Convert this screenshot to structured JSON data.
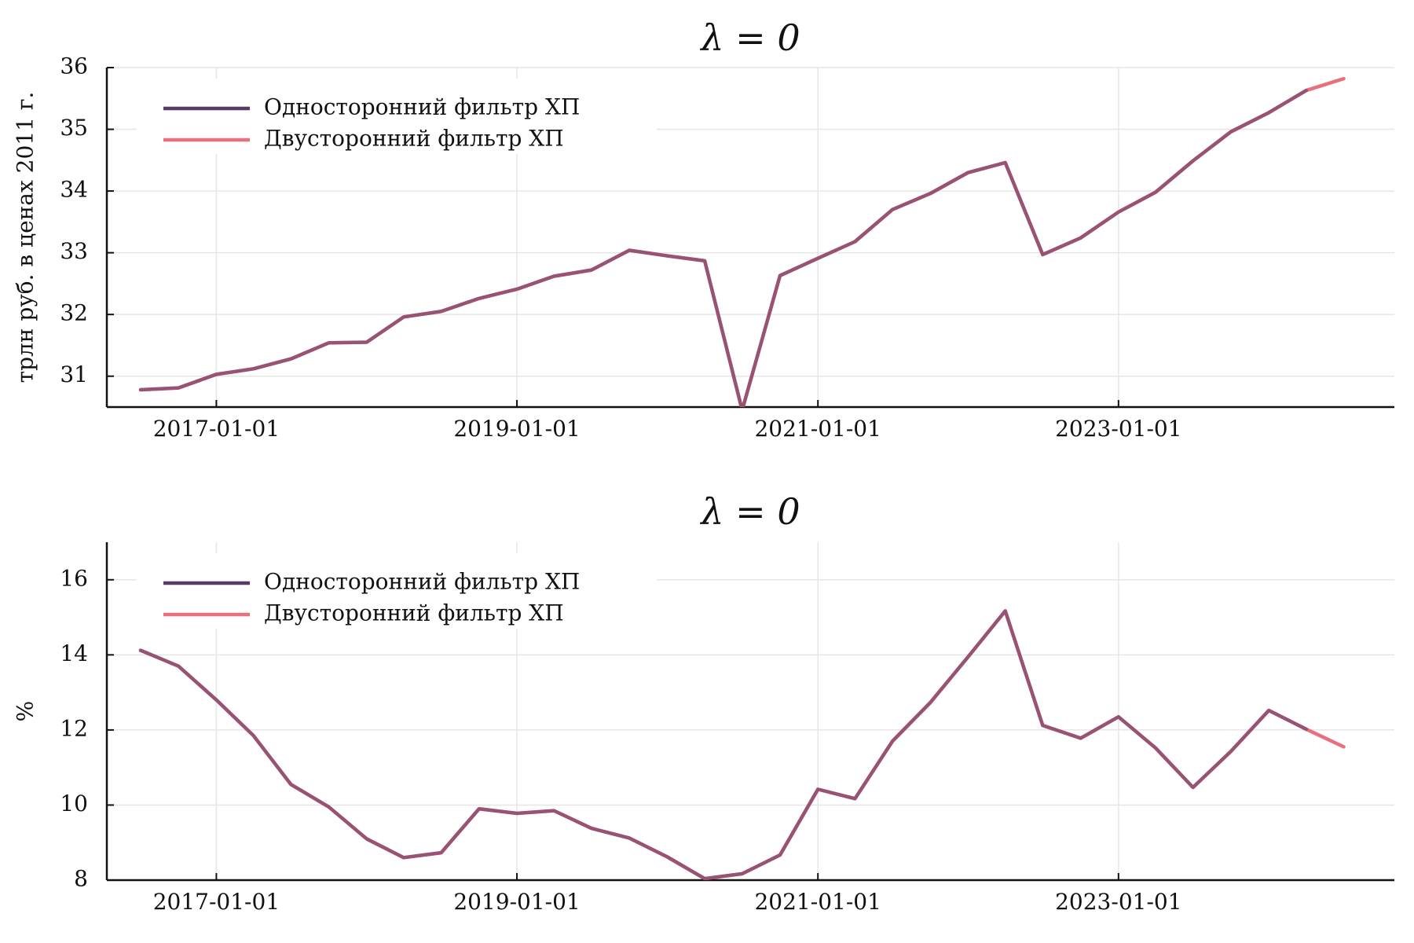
{
  "chart_data": [
    {
      "type": "line",
      "title": "λ = 0",
      "xlabel": "",
      "ylabel": "трлн руб. в ценах 2011 г.",
      "x_tick_labels": [
        "2017-01-01",
        "2019-01-01",
        "2021-01-01",
        "2023-01-01"
      ],
      "x_tick_values": [
        "2017-01-01",
        "2019-01-01",
        "2021-01-01",
        "2023-01-01"
      ],
      "y_tick_labels": [
        "31",
        "32",
        "33",
        "34",
        "35",
        "36"
      ],
      "y_tick_values": [
        31,
        32,
        33,
        34,
        35,
        36
      ],
      "xlim": [
        "2016-04-10",
        "2024-11-01"
      ],
      "ylim": [
        30.5,
        36
      ],
      "grid": true,
      "legend_position": "top-left",
      "x": [
        "2016-07-01",
        "2016-10-01",
        "2017-01-01",
        "2017-04-01",
        "2017-07-01",
        "2017-10-01",
        "2018-01-01",
        "2018-04-01",
        "2018-07-01",
        "2018-10-01",
        "2019-01-01",
        "2019-04-01",
        "2019-07-01",
        "2019-10-01",
        "2020-01-01",
        "2020-04-01",
        "2020-07-01",
        "2020-10-01",
        "2021-01-01",
        "2021-04-01",
        "2021-07-01",
        "2021-10-01",
        "2022-01-01",
        "2022-04-01",
        "2022-07-01",
        "2022-10-01",
        "2023-01-01",
        "2023-04-01",
        "2023-07-01",
        "2023-10-01",
        "2024-01-01",
        "2024-04-01",
        "2024-07-01"
      ],
      "series": [
        {
          "name": "Односторонний фильтр ХП",
          "color": "#553a6a",
          "values": [
            30.78,
            30.81,
            31.03,
            31.12,
            31.28,
            31.54,
            31.55,
            31.96,
            32.05,
            32.26,
            32.41,
            32.62,
            32.72,
            33.04,
            32.95,
            32.87,
            30.45,
            32.63,
            32.91,
            33.18,
            33.7,
            33.96,
            34.3,
            34.46,
            32.97,
            33.24,
            33.66,
            33.98,
            34.49,
            34.96,
            35.27,
            35.63,
            null
          ]
        },
        {
          "name": "Двусторонний фильтр ХП",
          "color": "#e8707e",
          "values": [
            30.78,
            30.81,
            31.03,
            31.12,
            31.28,
            31.54,
            31.55,
            31.96,
            32.05,
            32.26,
            32.41,
            32.62,
            32.72,
            33.04,
            32.95,
            32.87,
            30.45,
            32.63,
            32.91,
            33.18,
            33.7,
            33.96,
            34.3,
            34.46,
            32.97,
            33.24,
            33.66,
            33.98,
            34.49,
            34.96,
            35.27,
            35.63,
            35.82
          ]
        }
      ]
    },
    {
      "type": "line",
      "title": "λ = 0",
      "xlabel": "",
      "ylabel": "%",
      "x_tick_labels": [
        "2017-01-01",
        "2019-01-01",
        "2021-01-01",
        "2023-01-01"
      ],
      "x_tick_values": [
        "2017-01-01",
        "2019-01-01",
        "2021-01-01",
        "2023-01-01"
      ],
      "y_tick_labels": [
        "8",
        "10",
        "12",
        "14",
        "16"
      ],
      "y_tick_values": [
        8,
        10,
        12,
        14,
        16
      ],
      "xlim": [
        "2016-04-10",
        "2024-11-01"
      ],
      "ylim": [
        8,
        17
      ],
      "grid": true,
      "legend_position": "top-left",
      "x": [
        "2016-07-01",
        "2016-10-01",
        "2017-01-01",
        "2017-04-01",
        "2017-07-01",
        "2017-10-01",
        "2018-01-01",
        "2018-04-01",
        "2018-07-01",
        "2018-10-01",
        "2019-01-01",
        "2019-04-01",
        "2019-07-01",
        "2019-10-01",
        "2020-01-01",
        "2020-04-01",
        "2020-07-01",
        "2020-10-01",
        "2021-01-01",
        "2021-04-01",
        "2021-07-01",
        "2021-10-01",
        "2022-01-01",
        "2022-04-01",
        "2022-07-01",
        "2022-10-01",
        "2023-01-01",
        "2023-04-01",
        "2023-07-01",
        "2023-10-01",
        "2024-01-01",
        "2024-04-01",
        "2024-07-01"
      ],
      "series": [
        {
          "name": "Односторонний фильтр ХП",
          "color": "#553a6a",
          "values": [
            14.12,
            13.7,
            12.8,
            11.85,
            10.55,
            9.95,
            9.1,
            8.6,
            8.73,
            9.9,
            9.78,
            9.85,
            9.38,
            9.12,
            8.62,
            8.04,
            8.17,
            8.67,
            10.42,
            10.17,
            11.7,
            12.73,
            13.95,
            15.17,
            12.12,
            11.78,
            12.35,
            11.52,
            10.47,
            11.43,
            12.52,
            12.02,
            null
          ]
        },
        {
          "name": "Двусторонний фильтр ХП",
          "color": "#e8707e",
          "values": [
            14.12,
            13.7,
            12.8,
            11.85,
            10.55,
            9.95,
            9.1,
            8.6,
            8.73,
            9.9,
            9.78,
            9.85,
            9.38,
            9.12,
            8.62,
            8.04,
            8.17,
            8.67,
            10.42,
            10.17,
            11.7,
            12.73,
            13.95,
            15.17,
            12.12,
            11.78,
            12.35,
            11.52,
            10.47,
            11.43,
            12.52,
            12.02,
            11.55
          ]
        }
      ]
    }
  ]
}
